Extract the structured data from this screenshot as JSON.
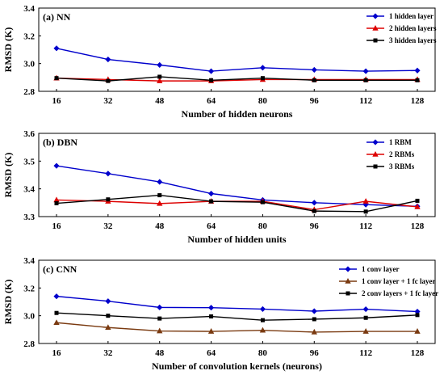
{
  "chart_data": [
    {
      "type": "line",
      "title": "(a) NN",
      "xlabel": "Number of hidden neurons",
      "ylabel": "RMSD (K)",
      "x": [
        16,
        32,
        48,
        64,
        80,
        96,
        112,
        128
      ],
      "xticks": [
        "16",
        "32",
        "48",
        "64",
        "80",
        "96",
        "112",
        "128"
      ],
      "ylim": [
        2.8,
        3.4
      ],
      "yticks": [
        "2.8",
        "3.0",
        "3.2",
        "3.4"
      ],
      "legend_position": "top-right",
      "series": [
        {
          "name": "1 hidden layer",
          "color": "#0000cc",
          "marker": "diamond",
          "values": [
            3.11,
            3.03,
            2.99,
            2.945,
            2.97,
            2.955,
            2.945,
            2.95
          ]
        },
        {
          "name": "2 hidden layers",
          "color": "#dd0000",
          "marker": "triangle",
          "values": [
            2.895,
            2.885,
            2.875,
            2.875,
            2.885,
            2.885,
            2.885,
            2.885
          ]
        },
        {
          "name": "3 hidden layers",
          "color": "#000000",
          "marker": "square",
          "values": [
            2.895,
            2.875,
            2.905,
            2.88,
            2.895,
            2.88,
            2.88,
            2.88
          ]
        }
      ]
    },
    {
      "type": "line",
      "title": "(b) DBN",
      "xlabel": "Number of hidden units",
      "ylabel": "RMSD (K)",
      "x": [
        16,
        32,
        48,
        64,
        80,
        96,
        112,
        128
      ],
      "xticks": [
        "16",
        "32",
        "48",
        "64",
        "80",
        "96",
        "112",
        "128"
      ],
      "ylim": [
        3.3,
        3.6
      ],
      "yticks": [
        "3.3",
        "3.4",
        "3.5",
        "3.6"
      ],
      "legend_position": "top-right",
      "series": [
        {
          "name": "1 RBM",
          "color": "#0000cc",
          "marker": "diamond",
          "values": [
            3.483,
            3.455,
            3.425,
            3.383,
            3.36,
            3.35,
            3.343,
            3.337
          ]
        },
        {
          "name": "2 RBMs",
          "color": "#dd0000",
          "marker": "triangle",
          "values": [
            3.36,
            3.355,
            3.347,
            3.355,
            3.355,
            3.325,
            3.355,
            3.335
          ]
        },
        {
          "name": "3 RBMs",
          "color": "#000000",
          "marker": "square",
          "values": [
            3.348,
            3.362,
            3.377,
            3.355,
            3.352,
            3.32,
            3.318,
            3.357
          ]
        }
      ]
    },
    {
      "type": "line",
      "title": "(c) CNN",
      "xlabel": "Number of convolution kernels (neurons)",
      "ylabel": "RMSD (K)",
      "x": [
        16,
        32,
        48,
        64,
        80,
        96,
        112,
        128
      ],
      "xticks": [
        "16",
        "32",
        "48",
        "64",
        "80",
        "96",
        "112",
        "128"
      ],
      "ylim": [
        2.8,
        3.4
      ],
      "yticks": [
        "2.8",
        "3.0",
        "3.2",
        "3.4"
      ],
      "legend_position": "top-right",
      "series": [
        {
          "name": "1 conv layer",
          "color": "#0000cc",
          "marker": "diamond",
          "values": [
            3.14,
            3.105,
            3.06,
            3.058,
            3.048,
            3.033,
            3.047,
            3.03
          ]
        },
        {
          "name": "1 conv layer + 1 fc layer",
          "color": "#7a3a10",
          "marker": "triangle",
          "values": [
            2.95,
            2.915,
            2.89,
            2.887,
            2.895,
            2.882,
            2.887,
            2.887
          ]
        },
        {
          "name": "2 conv layers + 1 fc layer",
          "color": "#000000",
          "marker": "square",
          "values": [
            3.02,
            3.0,
            2.98,
            2.995,
            2.968,
            2.975,
            2.985,
            3.005
          ]
        }
      ]
    }
  ]
}
